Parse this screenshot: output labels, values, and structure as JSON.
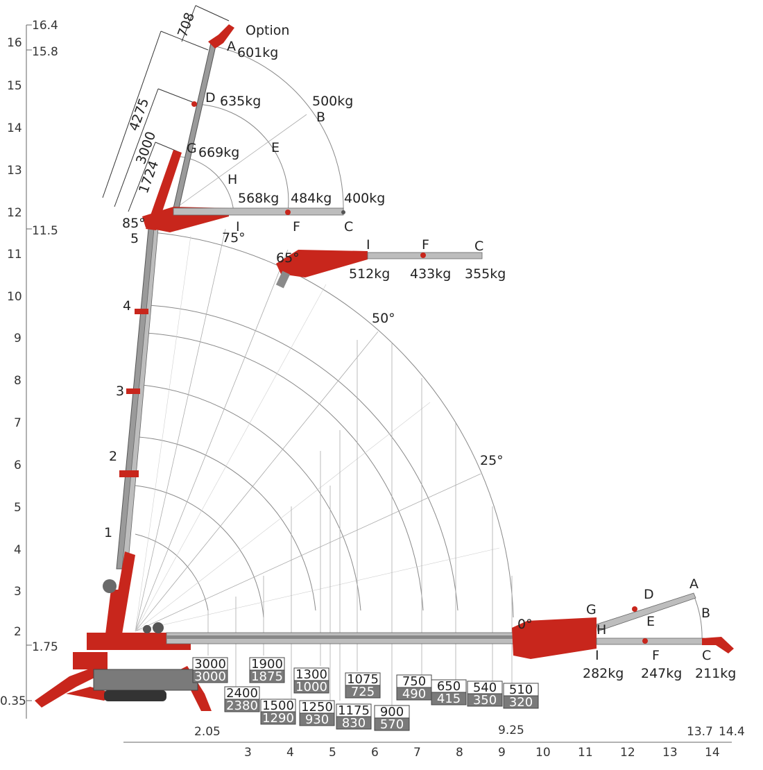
{
  "y_axis": {
    "ticks": [
      "2",
      "3",
      "4",
      "5",
      "6",
      "7",
      "8",
      "9",
      "10",
      "11",
      "12",
      "13",
      "14",
      "15",
      "16"
    ],
    "special": [
      "16.4",
      "15.8",
      "11.5",
      "1.75",
      "0.35"
    ]
  },
  "x_axis": {
    "ticks": [
      "3",
      "4",
      "5",
      "6",
      "7",
      "8",
      "9",
      "10",
      "11",
      "12",
      "13",
      "14"
    ],
    "special": [
      "2.05",
      "9.25",
      "13.7",
      "14.4"
    ]
  },
  "angles": [
    "85°",
    "75°",
    "65°",
    "50°",
    "25°",
    "0°"
  ],
  "section_numbers": [
    "1",
    "2",
    "3",
    "4",
    "5"
  ],
  "dimensions": [
    "708",
    "4275",
    "3000",
    "1724"
  ],
  "option_label": "Option",
  "top_jib": {
    "points": [
      "A",
      "D",
      "G",
      "H",
      "E",
      "B",
      "I",
      "F",
      "C"
    ],
    "loads": [
      "601kg",
      "635kg",
      "669kg",
      "500kg",
      "568kg",
      "484kg",
      "400kg"
    ]
  },
  "mid_jib": {
    "points": [
      "I",
      "F",
      "C"
    ],
    "loads": [
      "512kg",
      "433kg",
      "355kg"
    ]
  },
  "low_jib": {
    "points": [
      "A",
      "D",
      "G",
      "H",
      "E",
      "B",
      "I",
      "F",
      "C"
    ],
    "loads": [
      "282kg",
      "247kg",
      "211kg"
    ]
  },
  "load_boxes": [
    {
      "top": "3000",
      "bottom": "3000"
    },
    {
      "top": "2400",
      "bottom": "2380"
    },
    {
      "top": "1900",
      "bottom": "1875"
    },
    {
      "top": "1500",
      "bottom": "1290"
    },
    {
      "top": "1300",
      "bottom": "1000"
    },
    {
      "top": "1250",
      "bottom": "930"
    },
    {
      "top": "1175",
      "bottom": "830"
    },
    {
      "top": "1075",
      "bottom": "725"
    },
    {
      "top": "900",
      "bottom": "570"
    },
    {
      "top": "750",
      "bottom": "490"
    },
    {
      "top": "650",
      "bottom": "415"
    },
    {
      "top": "540",
      "bottom": "350"
    },
    {
      "top": "510",
      "bottom": "320"
    }
  ],
  "colors": {
    "crane_red": "#c8261c",
    "boom_grey": "#9a9a9a",
    "box_grey": "#7a7a7a"
  }
}
